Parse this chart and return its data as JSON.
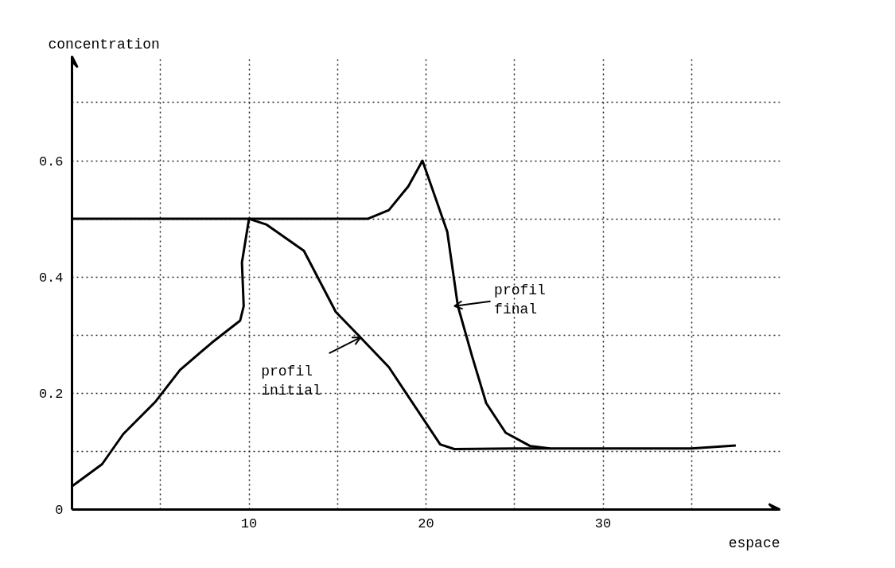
{
  "chart_data": {
    "type": "line",
    "xlabel": "espace",
    "ylabel": "concentration",
    "xlim": [
      0,
      40
    ],
    "ylim": [
      0,
      0.78
    ],
    "xticks": [
      {
        "value": 5,
        "label": null
      },
      10,
      {
        "value": 15,
        "label": null
      },
      20,
      {
        "value": 25,
        "label": null
      },
      30,
      {
        "value": 35,
        "label": null
      }
    ],
    "yticks": [
      0,
      {
        "value": 0.1,
        "label": null
      },
      0.2,
      {
        "value": 0.3,
        "label": null
      },
      0.4,
      {
        "value": 0.5,
        "label": null
      },
      0.6,
      {
        "value": 0.7,
        "label": null
      }
    ],
    "grid": true,
    "line_style": "solid",
    "marker": "none",
    "series": [
      {
        "color": "#000000",
        "x": [
          0,
          3,
          6,
          8,
          10,
          11,
          13.1,
          14.9,
          16.3,
          17.9,
          20.8,
          21.6,
          25,
          30,
          35,
          37.5
        ],
        "values": [
          0.5,
          0.5,
          0.5,
          0.5,
          0.5,
          0.49,
          0.445,
          0.34,
          0.296,
          0.245,
          0.112,
          0.104,
          0.105,
          0.105,
          0.105,
          0.11
        ]
      },
      {
        "color": "#000000",
        "x": [
          0,
          1.7,
          2.9,
          4.7,
          6.1,
          7.9,
          9.5,
          9.7,
          9.6,
          10,
          13,
          16.7,
          17.9,
          19.0,
          19.8,
          21.2,
          21.8,
          22.6,
          23.4,
          24.5,
          25.9,
          27
        ],
        "values": [
          0.04,
          0.078,
          0.13,
          0.185,
          0.24,
          0.287,
          0.325,
          0.35,
          0.425,
          0.5,
          0.5,
          0.5,
          0.515,
          0.556,
          0.6,
          0.478,
          0.35,
          0.264,
          0.183,
          0.132,
          0.109,
          0.105
        ]
      }
    ],
    "annotations": [
      {
        "text": "profil\ninitial",
        "x": 16.3,
        "y": 0.296
      },
      {
        "text": "profil\nfinal",
        "x": 21.6,
        "y": 0.35
      }
    ]
  }
}
